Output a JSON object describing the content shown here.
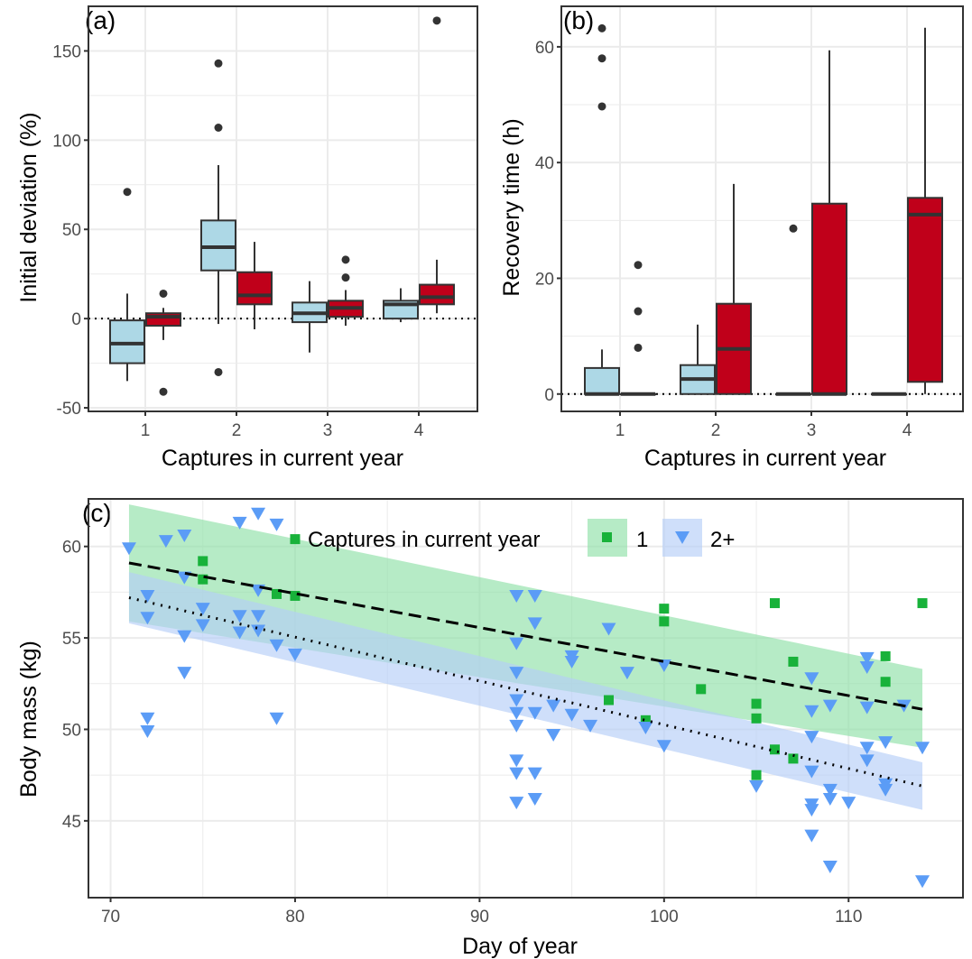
{
  "colors": {
    "box_first": "#add8e6",
    "box_other": "#c0001a",
    "green": "#18b23a",
    "green_ribbon": "#8fe0a8",
    "blue": "#5b9cf6",
    "blue_ribbon": "#b5cef8",
    "grid": "#ebebeb",
    "border": "#333333"
  },
  "chart_data": [
    {
      "type": "box",
      "panel_label": "(a)",
      "xlabel": "Captures in current year",
      "ylabel": "Initial deviation (%)",
      "categories": [
        "1",
        "2",
        "3",
        "4"
      ],
      "ylim": [
        -52,
        175
      ],
      "yticks": [
        -50,
        0,
        50,
        100,
        150
      ],
      "ytick_labels": [
        "-50",
        "0",
        "50",
        "100",
        "150"
      ],
      "reference_line": 0,
      "grid": true,
      "groups": [
        {
          "fill": "first",
          "boxes": [
            {
              "q1": -25,
              "median": -14,
              "q3": -1,
              "lower": -35,
              "upper": 14,
              "outliers": [
                71
              ]
            },
            {
              "q1": 27,
              "median": 40,
              "q3": 55,
              "lower": -3,
              "upper": 86,
              "outliers": [
                -30,
                107,
                143
              ]
            },
            {
              "q1": -2,
              "median": 3,
              "q3": 9,
              "lower": -19,
              "upper": 21,
              "outliers": []
            },
            {
              "q1": 0,
              "median": 8,
              "q3": 10,
              "lower": -2,
              "upper": 17,
              "outliers": []
            }
          ]
        },
        {
          "fill": "other",
          "boxes": [
            {
              "q1": -4,
              "median": 1,
              "q3": 3,
              "lower": -12,
              "upper": 6,
              "outliers": [
                -41,
                14
              ]
            },
            {
              "q1": 8,
              "median": 13,
              "q3": 26,
              "lower": -6,
              "upper": 43,
              "outliers": []
            },
            {
              "q1": 1,
              "median": 6,
              "q3": 10,
              "lower": -4,
              "upper": 16,
              "outliers": [
                23,
                33
              ]
            },
            {
              "q1": 8,
              "median": 12,
              "q3": 19,
              "lower": 3,
              "upper": 33,
              "outliers": [
                167
              ]
            }
          ]
        }
      ]
    },
    {
      "type": "box",
      "panel_label": "(b)",
      "xlabel": "Captures in current year",
      "ylabel": "Recovery time (h)",
      "categories": [
        "1",
        "2",
        "3",
        "4"
      ],
      "ylim": [
        -3,
        67
      ],
      "yticks": [
        0,
        20,
        40,
        60
      ],
      "ytick_labels": [
        "0",
        "20",
        "40",
        "60"
      ],
      "reference_line": 0,
      "grid": true,
      "groups": [
        {
          "fill": "first",
          "boxes": [
            {
              "q1": 0,
              "median": 0,
              "q3": 4.5,
              "lower": 0,
              "upper": 7.7,
              "outliers": [
                49.7,
                58,
                63.2
              ]
            },
            {
              "q1": 0,
              "median": 2.6,
              "q3": 5,
              "lower": 0,
              "upper": 12,
              "outliers": []
            },
            {
              "q1": 0,
              "median": 0,
              "q3": 0,
              "lower": 0,
              "upper": 0,
              "outliers": [
                28.6
              ]
            },
            {
              "q1": 0,
              "median": 0,
              "q3": 0,
              "lower": 0,
              "upper": 0,
              "outliers": []
            }
          ]
        },
        {
          "fill": "other",
          "boxes": [
            {
              "q1": 0,
              "median": 0,
              "q3": 0,
              "lower": 0,
              "upper": 0,
              "outliers": [
                8,
                14.3,
                22.3
              ]
            },
            {
              "q1": 0,
              "median": 7.8,
              "q3": 15.6,
              "lower": 0,
              "upper": 36.3,
              "outliers": []
            },
            {
              "q1": 0,
              "median": 0,
              "q3": 32.9,
              "lower": 0,
              "upper": 59.4,
              "outliers": []
            },
            {
              "q1": 2.1,
              "median": 31,
              "q3": 33.9,
              "lower": 0,
              "upper": 63.3,
              "outliers": []
            }
          ]
        }
      ]
    },
    {
      "type": "scatter",
      "panel_label": "(c)",
      "xlabel": "Day of year",
      "ylabel": "Body mass (kg)",
      "xlim": [
        68.8,
        116.2
      ],
      "ylim": [
        40.8,
        62.6
      ],
      "xticks": [
        70,
        80,
        90,
        100,
        110
      ],
      "xtick_labels": [
        "70",
        "80",
        "90",
        "100",
        "110"
      ],
      "yticks": [
        45,
        50,
        55,
        60
      ],
      "ytick_labels": [
        "45",
        "50",
        "55",
        "60"
      ],
      "grid": true,
      "legend": {
        "title": "Captures in current year",
        "placement": "top-center"
      },
      "series": [
        {
          "name": "1",
          "marker": "square",
          "color": "green",
          "points": [
            [
              75,
              59.2
            ],
            [
              75,
              58.2
            ],
            [
              79,
              57.4
            ],
            [
              80,
              60.4
            ],
            [
              80,
              57.3
            ],
            [
              97,
              51.6
            ],
            [
              99,
              50.5
            ],
            [
              100,
              56.6
            ],
            [
              100,
              55.9
            ],
            [
              102,
              52.2
            ],
            [
              105,
              51.4
            ],
            [
              105,
              50.6
            ],
            [
              105,
              47.5
            ],
            [
              106,
              56.9
            ],
            [
              106,
              48.9
            ],
            [
              107,
              53.7
            ],
            [
              107,
              48.4
            ],
            [
              112,
              54.0
            ],
            [
              112,
              52.6
            ],
            [
              114,
              56.9
            ]
          ],
          "fit": {
            "x": [
              71,
              114
            ],
            "y": [
              59.1,
              51.1
            ],
            "style": "dashed"
          },
          "band": {
            "x": [
              71,
              114
            ],
            "lower": [
              55.9,
              49.0
            ],
            "upper": [
              62.3,
              53.3
            ]
          }
        },
        {
          "name": "2+",
          "marker": "triangle-down",
          "color": "blue",
          "points": [
            [
              71,
              59.9
            ],
            [
              72,
              57.3
            ],
            [
              72,
              56.1
            ],
            [
              72,
              50.6
            ],
            [
              72,
              49.9
            ],
            [
              73,
              60.3
            ],
            [
              74,
              60.6
            ],
            [
              74,
              58.3
            ],
            [
              74,
              55.1
            ],
            [
              74,
              53.1
            ],
            [
              75,
              56.6
            ],
            [
              75,
              55.7
            ],
            [
              77,
              61.3
            ],
            [
              77,
              56.2
            ],
            [
              77,
              55.3
            ],
            [
              78,
              61.8
            ],
            [
              78,
              57.6
            ],
            [
              78,
              56.2
            ],
            [
              78,
              55.4
            ],
            [
              79,
              61.2
            ],
            [
              79,
              54.6
            ],
            [
              79,
              50.6
            ],
            [
              80,
              54.1
            ],
            [
              92,
              57.3
            ],
            [
              92,
              54.7
            ],
            [
              92,
              53.1
            ],
            [
              92,
              51.6
            ],
            [
              92,
              50.9
            ],
            [
              92,
              50.2
            ],
            [
              92,
              48.3
            ],
            [
              92,
              47.6
            ],
            [
              92,
              46.0
            ],
            [
              93,
              57.3
            ],
            [
              93,
              55.8
            ],
            [
              93,
              50.9
            ],
            [
              93,
              47.6
            ],
            [
              93,
              46.2
            ],
            [
              94,
              51.3
            ],
            [
              94,
              49.7
            ],
            [
              95,
              54.0
            ],
            [
              95,
              53.7
            ],
            [
              95,
              50.8
            ],
            [
              96,
              50.2
            ],
            [
              97,
              55.5
            ],
            [
              98,
              53.1
            ],
            [
              99,
              50.1
            ],
            [
              100,
              53.5
            ],
            [
              100,
              49.1
            ],
            [
              105,
              46.9
            ],
            [
              108,
              52.8
            ],
            [
              108,
              51.0
            ],
            [
              108,
              49.6
            ],
            [
              108,
              47.7
            ],
            [
              108,
              45.9
            ],
            [
              108,
              45.6
            ],
            [
              108,
              44.2
            ],
            [
              109,
              51.3
            ],
            [
              109,
              46.7
            ],
            [
              109,
              46.2
            ],
            [
              109,
              42.5
            ],
            [
              110,
              46.0
            ],
            [
              111,
              53.9
            ],
            [
              111,
              53.4
            ],
            [
              111,
              51.2
            ],
            [
              111,
              49.0
            ],
            [
              111,
              48.3
            ],
            [
              112,
              49.3
            ],
            [
              112,
              47.0
            ],
            [
              112,
              46.7
            ],
            [
              113,
              51.3
            ],
            [
              114,
              49.0
            ],
            [
              114,
              41.7
            ]
          ],
          "fit": {
            "x": [
              71,
              114
            ],
            "y": [
              57.2,
              46.9
            ],
            "style": "dotted"
          },
          "band": {
            "x": [
              71,
              114
            ],
            "lower": [
              55.8,
              45.6
            ],
            "upper": [
              58.6,
              48.2
            ]
          }
        }
      ]
    }
  ]
}
